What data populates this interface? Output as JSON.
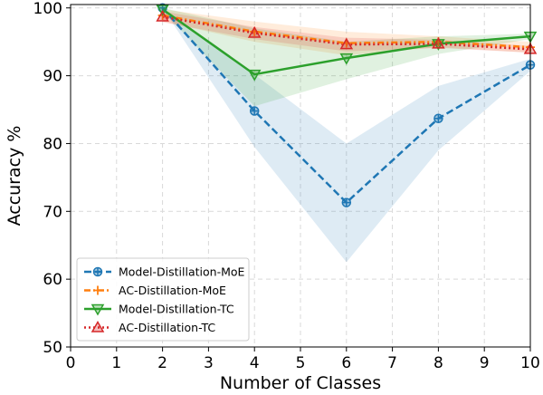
{
  "chart_data": {
    "type": "line",
    "title": "",
    "xlabel": "Number of Classes",
    "ylabel": "Accuracy %",
    "xlim": [
      0,
      10
    ],
    "ylim": [
      50,
      100.5
    ],
    "xticks": [
      "0",
      "1",
      "2",
      "3",
      "4",
      "5",
      "6",
      "7",
      "8",
      "9",
      "10"
    ],
    "yticks": [
      "50",
      "60",
      "70",
      "80",
      "90",
      "100"
    ],
    "grid": true,
    "legend_position": "lower-left",
    "x": [
      2,
      4,
      6,
      8,
      10
    ],
    "series": [
      {
        "name": "Model-Distillation-MoE",
        "color": "#1f77b4",
        "line_style": "dashed",
        "marker": "circle-plus",
        "values": [
          100.0,
          84.8,
          71.3,
          83.7,
          91.6
        ],
        "band_upper": [
          100.0,
          90.2,
          80.0,
          88.5,
          92.5
        ],
        "band_lower": [
          100.0,
          79.5,
          62.5,
          79.0,
          90.7
        ]
      },
      {
        "name": "AC-Distillation-MoE",
        "color": "#ff7f0e",
        "line_style": "dashdot",
        "marker": "plus",
        "values": [
          98.9,
          96.5,
          94.8,
          95.0,
          94.2
        ],
        "band_upper": [
          99.8,
          98.0,
          96.5,
          95.8,
          95.0
        ],
        "band_lower": [
          98.0,
          95.0,
          93.0,
          94.2,
          93.4
        ]
      },
      {
        "name": "Model-Distillation-TC",
        "color": "#2ca02c",
        "line_style": "solid",
        "marker": "triangle-down",
        "values": [
          99.8,
          90.2,
          92.6,
          94.7,
          95.8
        ],
        "band_upper": [
          100.0,
          97.0,
          95.0,
          95.8,
          96.2
        ],
        "band_lower": [
          99.5,
          85.5,
          89.5,
          93.2,
          95.4
        ]
      },
      {
        "name": "AC-Distillation-TC",
        "color": "#d62728",
        "line_style": "dotted",
        "marker": "triangle-up",
        "values": [
          98.7,
          96.3,
          94.6,
          94.7,
          93.9
        ],
        "band_upper": [
          99.5,
          97.2,
          95.6,
          95.3,
          94.4
        ],
        "band_lower": [
          97.9,
          95.4,
          93.6,
          94.1,
          93.4
        ]
      }
    ]
  }
}
